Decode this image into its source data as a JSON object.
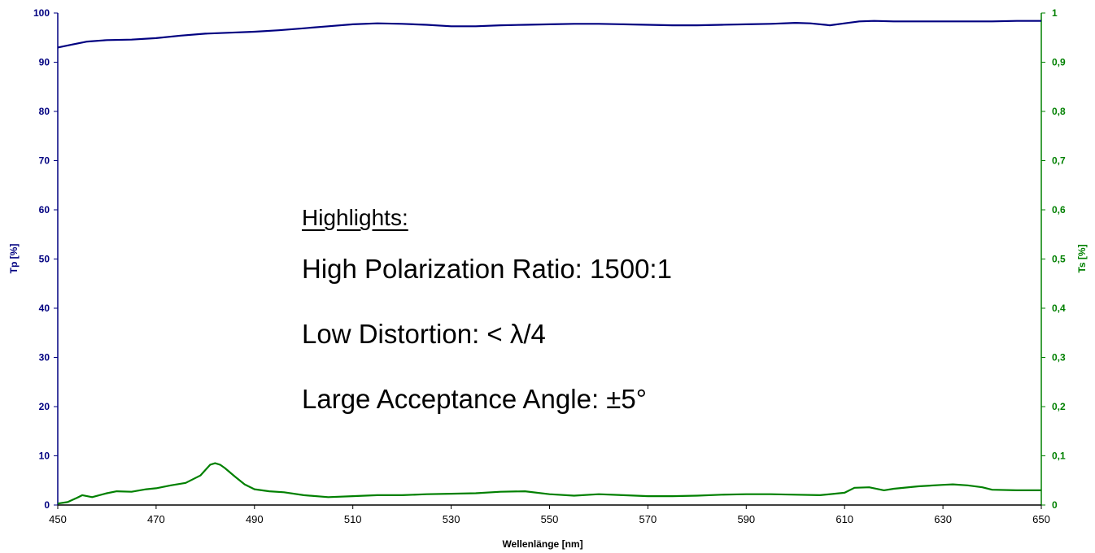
{
  "chart_data": {
    "type": "line",
    "xlabel": "Wellenlänge [nm]",
    "ylabel_left": "Tp [%]",
    "ylabel_right": "Ts [%]",
    "xlim": [
      450,
      650
    ],
    "ylim_left": [
      0,
      100
    ],
    "ylim_right": [
      0,
      1
    ],
    "x_ticks": [
      "450",
      "470",
      "490",
      "510",
      "530",
      "550",
      "570",
      "590",
      "610",
      "630",
      "650"
    ],
    "y_ticks_left": [
      "0",
      "10",
      "20",
      "30",
      "40",
      "50",
      "60",
      "70",
      "80",
      "90",
      "100"
    ],
    "y_ticks_right": [
      "0",
      "0,1",
      "0,2",
      "0,3",
      "0,4",
      "0,5",
      "0,6",
      "0,7",
      "0,8",
      "0,9",
      "1"
    ],
    "grid": false,
    "series": [
      {
        "axis": "left",
        "color": "#000080",
        "x": [
          450,
          453,
          456,
          460,
          465,
          470,
          475,
          480,
          485,
          490,
          495,
          500,
          505,
          510,
          515,
          520,
          525,
          530,
          535,
          540,
          545,
          550,
          555,
          560,
          565,
          570,
          575,
          580,
          585,
          590,
          595,
          600,
          603,
          607,
          610,
          613,
          616,
          620,
          625,
          630,
          635,
          640,
          645,
          650
        ],
        "y": [
          93.0,
          93.6,
          94.2,
          94.5,
          94.6,
          94.9,
          95.4,
          95.8,
          96.0,
          96.2,
          96.5,
          96.9,
          97.3,
          97.7,
          97.9,
          97.8,
          97.6,
          97.3,
          97.3,
          97.5,
          97.6,
          97.7,
          97.8,
          97.8,
          97.7,
          97.6,
          97.5,
          97.5,
          97.6,
          97.7,
          97.8,
          98.0,
          97.9,
          97.5,
          97.9,
          98.3,
          98.4,
          98.3,
          98.3,
          98.3,
          98.3,
          98.3,
          98.4,
          98.4
        ]
      },
      {
        "axis": "right",
        "color": "#008000",
        "x": [
          450,
          452,
          454,
          455,
          457,
          460,
          462,
          465,
          468,
          470,
          473,
          476,
          479,
          481,
          482,
          483,
          484,
          486,
          488,
          490,
          493,
          496,
          500,
          505,
          510,
          515,
          520,
          525,
          530,
          535,
          540,
          545,
          550,
          555,
          560,
          565,
          570,
          575,
          580,
          585,
          590,
          595,
          600,
          605,
          610,
          612,
          615,
          618,
          620,
          625,
          630,
          632,
          635,
          638,
          640,
          645,
          650
        ],
        "y": [
          0.003,
          0.006,
          0.015,
          0.02,
          0.016,
          0.024,
          0.028,
          0.027,
          0.032,
          0.034,
          0.04,
          0.045,
          0.06,
          0.082,
          0.085,
          0.082,
          0.075,
          0.058,
          0.042,
          0.032,
          0.028,
          0.026,
          0.02,
          0.016,
          0.018,
          0.02,
          0.02,
          0.022,
          0.023,
          0.024,
          0.027,
          0.028,
          0.022,
          0.019,
          0.022,
          0.02,
          0.018,
          0.018,
          0.019,
          0.021,
          0.022,
          0.022,
          0.021,
          0.02,
          0.025,
          0.035,
          0.036,
          0.03,
          0.033,
          0.038,
          0.041,
          0.042,
          0.04,
          0.036,
          0.031,
          0.03,
          0.03
        ]
      }
    ]
  },
  "annotations": {
    "heading": "Highlights:",
    "line1": "High Polarization Ratio: 1500:1",
    "line2": "Low Distortion: < λ/4",
    "line3": "Large Acceptance Angle: ±5°"
  },
  "colors": {
    "left_axis": "#000080",
    "right_axis": "#008000",
    "x_axis": "#000000"
  }
}
